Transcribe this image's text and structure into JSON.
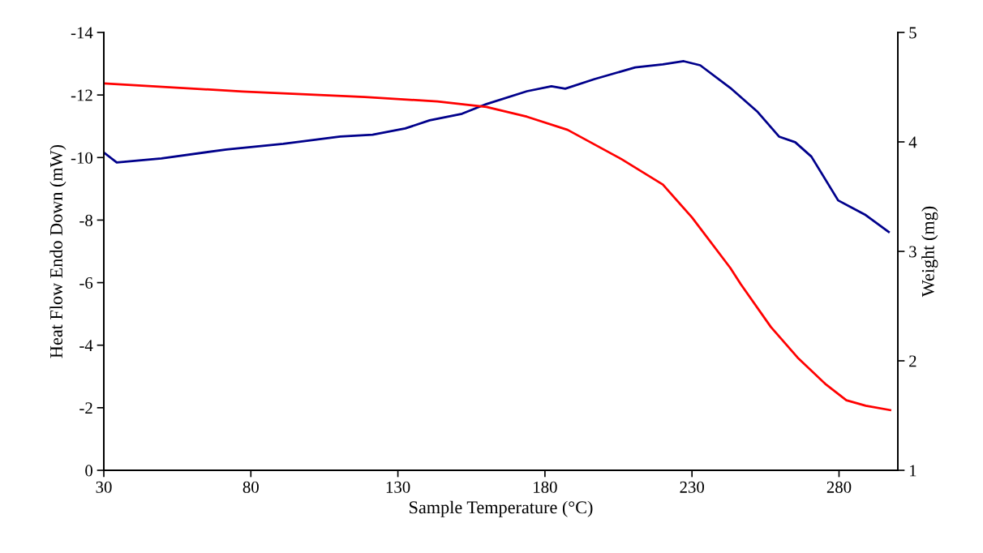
{
  "chart_data": {
    "type": "line",
    "xlabel": "Sample Temperature (°C)",
    "ylabel": "Heat Flow Endo Down (mW)",
    "y2label": "Weight (mg)",
    "xlim": [
      30,
      300
    ],
    "xticks": [
      30,
      80,
      130,
      180,
      230,
      280
    ],
    "ylim": [
      0,
      -14
    ],
    "yticks": [
      0,
      -2,
      -4,
      -6,
      -8,
      -10,
      -12,
      -14
    ],
    "y2lim": [
      1,
      5
    ],
    "y2ticks": [
      1,
      2,
      3,
      4,
      5
    ],
    "grid": false,
    "marker": "none",
    "line_style": "solid",
    "series": [
      {
        "color": "#00008b",
        "x": [
          30,
          34.4,
          49.6,
          71.7,
          91.0,
          110.4,
          121.4,
          132.5,
          140.8,
          151.8,
          160.1,
          173.9,
          182.2,
          186.9,
          196.9,
          210.7,
          220.1,
          227.2,
          232.8,
          243.0,
          252.1,
          259.6,
          265.1,
          270.6,
          279.7,
          289.1,
          296.9
        ],
        "values": [
          -10.16,
          -9.84,
          -9.97,
          -10.26,
          -10.44,
          -10.67,
          -10.73,
          -10.93,
          -11.19,
          -11.4,
          -11.71,
          -12.12,
          -12.28,
          -12.2,
          -12.51,
          -12.88,
          -12.98,
          -13.08,
          -12.95,
          -12.23,
          -11.48,
          -10.67,
          -10.49,
          -10.03,
          -8.63,
          -8.16,
          -7.62
        ]
      },
      {
        "color": "#ff0000",
        "axis": "y2",
        "x": [
          30,
          77.2,
          118.7,
          143.5,
          160.1,
          173.9,
          187.7,
          206.2,
          220.1,
          230.0,
          243.0,
          246.6,
          256.8,
          265.9,
          275.3,
          282.5,
          289.1,
          297.4
        ],
        "values": [
          4.535,
          4.46,
          4.41,
          4.37,
          4.32,
          4.23,
          4.11,
          3.84,
          3.61,
          3.31,
          2.85,
          2.7,
          2.31,
          2.03,
          1.79,
          1.64,
          1.59,
          1.55
        ]
      }
    ]
  }
}
